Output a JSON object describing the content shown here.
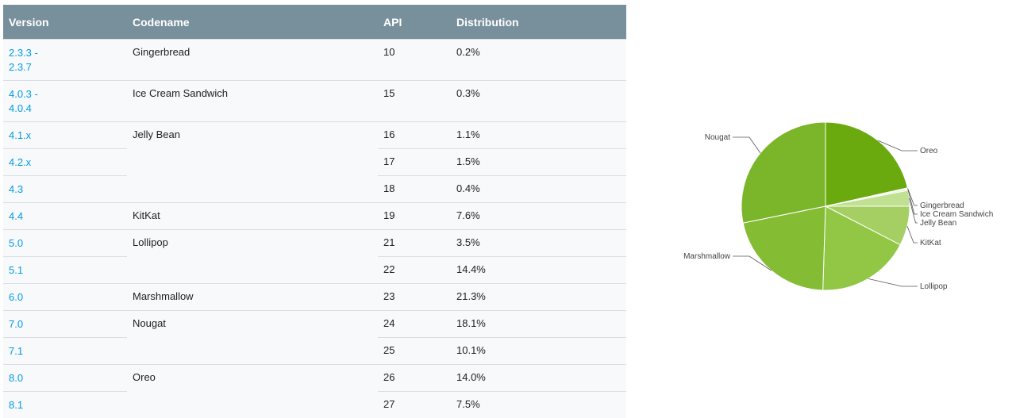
{
  "table": {
    "headers": {
      "version": "Version",
      "codename": "Codename",
      "api": "API",
      "distribution": "Distribution"
    },
    "rows": [
      {
        "version_l1": "2.3.3 -",
        "version_l2": "2.3.7",
        "codename": "Gingerbread",
        "api": "10",
        "distribution": "0.2%"
      },
      {
        "version_l1": "4.0.3 -",
        "version_l2": "4.0.4",
        "codename": "Ice Cream Sandwich",
        "api": "15",
        "distribution": "0.3%"
      },
      {
        "version_l1": "4.1.x",
        "codename": "Jelly Bean",
        "api": "16",
        "distribution": "1.1%"
      },
      {
        "version_l1": "4.2.x",
        "api": "17",
        "distribution": "1.5%"
      },
      {
        "version_l1": "4.3",
        "api": "18",
        "distribution": "0.4%"
      },
      {
        "version_l1": "4.4",
        "codename": "KitKat",
        "api": "19",
        "distribution": "7.6%"
      },
      {
        "version_l1": "5.0",
        "codename": "Lollipop",
        "api": "21",
        "distribution": "3.5%"
      },
      {
        "version_l1": "5.1",
        "api": "22",
        "distribution": "14.4%"
      },
      {
        "version_l1": "6.0",
        "codename": "Marshmallow",
        "api": "23",
        "distribution": "21.3%"
      },
      {
        "version_l1": "7.0",
        "codename": "Nougat",
        "api": "24",
        "distribution": "18.1%"
      },
      {
        "version_l1": "7.1",
        "api": "25",
        "distribution": "10.1%"
      },
      {
        "version_l1": "8.0",
        "codename": "Oreo",
        "api": "26",
        "distribution": "14.0%"
      },
      {
        "version_l1": "8.1",
        "api": "27",
        "distribution": "7.5%"
      }
    ]
  },
  "chart_data": {
    "type": "pie",
    "start": "12 o'clock, slices clockwise from Oreo",
    "slices": [
      {
        "label": "Oreo",
        "value": 21.5,
        "color": "#6aaa0e"
      },
      {
        "label": "Gingerbread",
        "value": 0.2,
        "color": "#f1f8e3"
      },
      {
        "label": "Ice Cream Sandwich",
        "value": 0.3,
        "color": "#dcefbf"
      },
      {
        "label": "Jelly Bean",
        "value": 3.0,
        "color": "#c0e092"
      },
      {
        "label": "KitKat",
        "value": 7.6,
        "color": "#a5cf62"
      },
      {
        "label": "Lollipop",
        "value": 17.9,
        "color": "#91c744"
      },
      {
        "label": "Marshmallow",
        "value": 21.3,
        "color": "#84bc34"
      },
      {
        "label": "Nougat",
        "value": 28.2,
        "color": "#7bb52a"
      }
    ]
  }
}
